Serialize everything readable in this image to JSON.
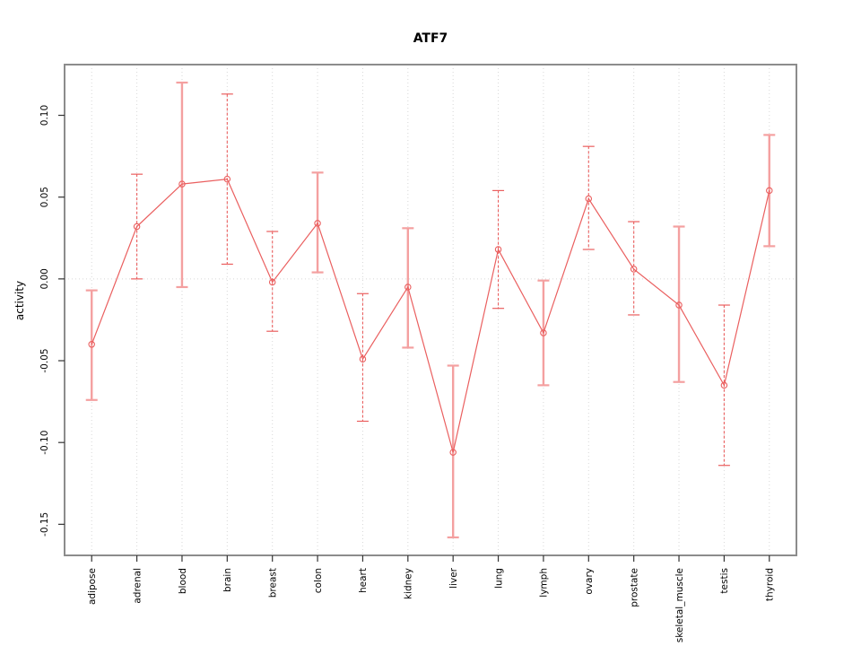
{
  "chart_data": {
    "type": "line",
    "title": "ATF7",
    "xlabel": "",
    "ylabel": "activity",
    "legend": "none",
    "grid": "vertical dotted gridline at each category; horizontal dotted gridline at y=0",
    "categories": [
      "adipose",
      "adrenal",
      "blood",
      "brain",
      "breast",
      "colon",
      "heart",
      "kidney",
      "liver",
      "lung",
      "lymph",
      "ovary",
      "prostate",
      "skeletal_muscle",
      "testis",
      "thyroid"
    ],
    "series": [
      {
        "name": "activity",
        "marker": "open-circle",
        "values": [
          -0.04,
          0.032,
          0.058,
          0.061,
          -0.002,
          0.034,
          -0.049,
          -0.005,
          -0.106,
          0.018,
          -0.033,
          0.049,
          0.006,
          -0.016,
          -0.065,
          0.054
        ],
        "error_lower": [
          -0.074,
          0.0,
          -0.005,
          0.009,
          -0.032,
          0.004,
          -0.087,
          -0.042,
          -0.158,
          -0.018,
          -0.065,
          0.018,
          -0.022,
          -0.063,
          -0.114,
          0.02
        ],
        "error_upper": [
          -0.007,
          0.064,
          0.12,
          0.113,
          0.029,
          0.065,
          -0.009,
          0.031,
          -0.053,
          0.054,
          -0.001,
          0.081,
          0.035,
          0.032,
          -0.016,
          0.088
        ]
      }
    ],
    "error_bar_styles": [
      "solid",
      "dashed",
      "solid",
      "dashed",
      "dashed",
      "solid",
      "dashed",
      "solid",
      "solid",
      "dashed",
      "solid",
      "dashed",
      "dashed",
      "solid",
      "dashed",
      "solid"
    ],
    "y_ticks": [
      0.1,
      0.05,
      0.0,
      -0.05,
      -0.1,
      -0.15
    ],
    "ylim": [
      -0.169,
      0.131
    ],
    "xlim": [
      0.4,
      16.6
    ],
    "colors": {
      "line": "#ea5f5f",
      "error_bar_solid": "#f4a0a0",
      "error_bar_dashed": "#ea5f5f",
      "axis_box": "#8c8c8c",
      "axis_tick": "#333333",
      "gridline": "#d8d8d8",
      "text": "#000000"
    }
  }
}
